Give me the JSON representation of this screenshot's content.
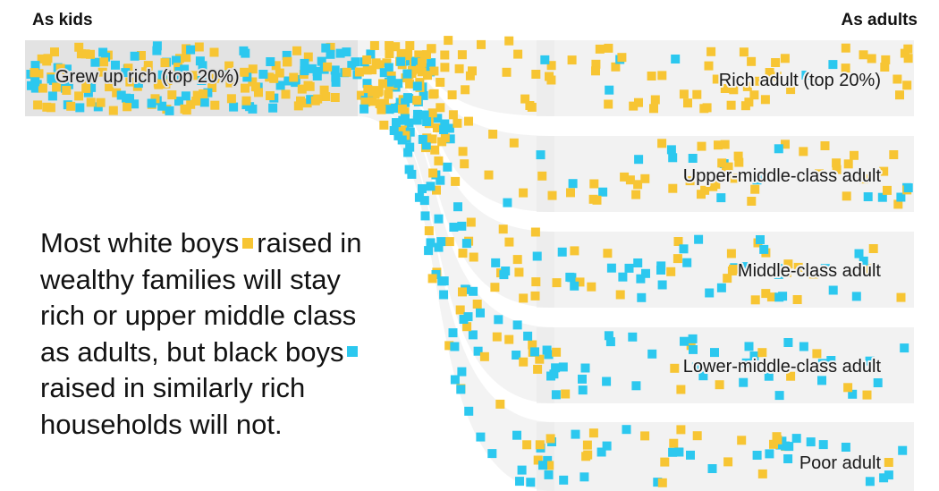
{
  "header": {
    "left_label": "As kids",
    "right_label": "As adults"
  },
  "colors": {
    "white_boys": "#f7c533",
    "black_boys": "#2cc8ef",
    "band": "#f2f2f2",
    "source_band": "#e3e3e3",
    "flow_shade": "#e9e9e9"
  },
  "chart_data": {
    "type": "sankey",
    "source": "Grew up rich (top 20%)",
    "legend": [
      {
        "name": "white boys",
        "color": "#f7c533"
      },
      {
        "name": "black boys",
        "color": "#2cc8ef"
      }
    ],
    "targets": [
      "Rich adult (top 20%)",
      "Upper-middle-class adult",
      "Middle-class adult",
      "Lower-middle-class adult",
      "Poor adult"
    ],
    "density": {
      "white_boys": [
        5,
        4,
        3,
        2,
        2
      ],
      "black_boys": [
        1,
        2,
        3,
        3,
        3
      ]
    }
  },
  "annotation": {
    "line1a": "Most white boys",
    "line1b": "raised in",
    "line2": "wealthy families will stay",
    "line3": "rich or upper middle class",
    "line4": "as adults, but black boys",
    "line5": "raised in similarly rich",
    "line6": "households will not."
  }
}
